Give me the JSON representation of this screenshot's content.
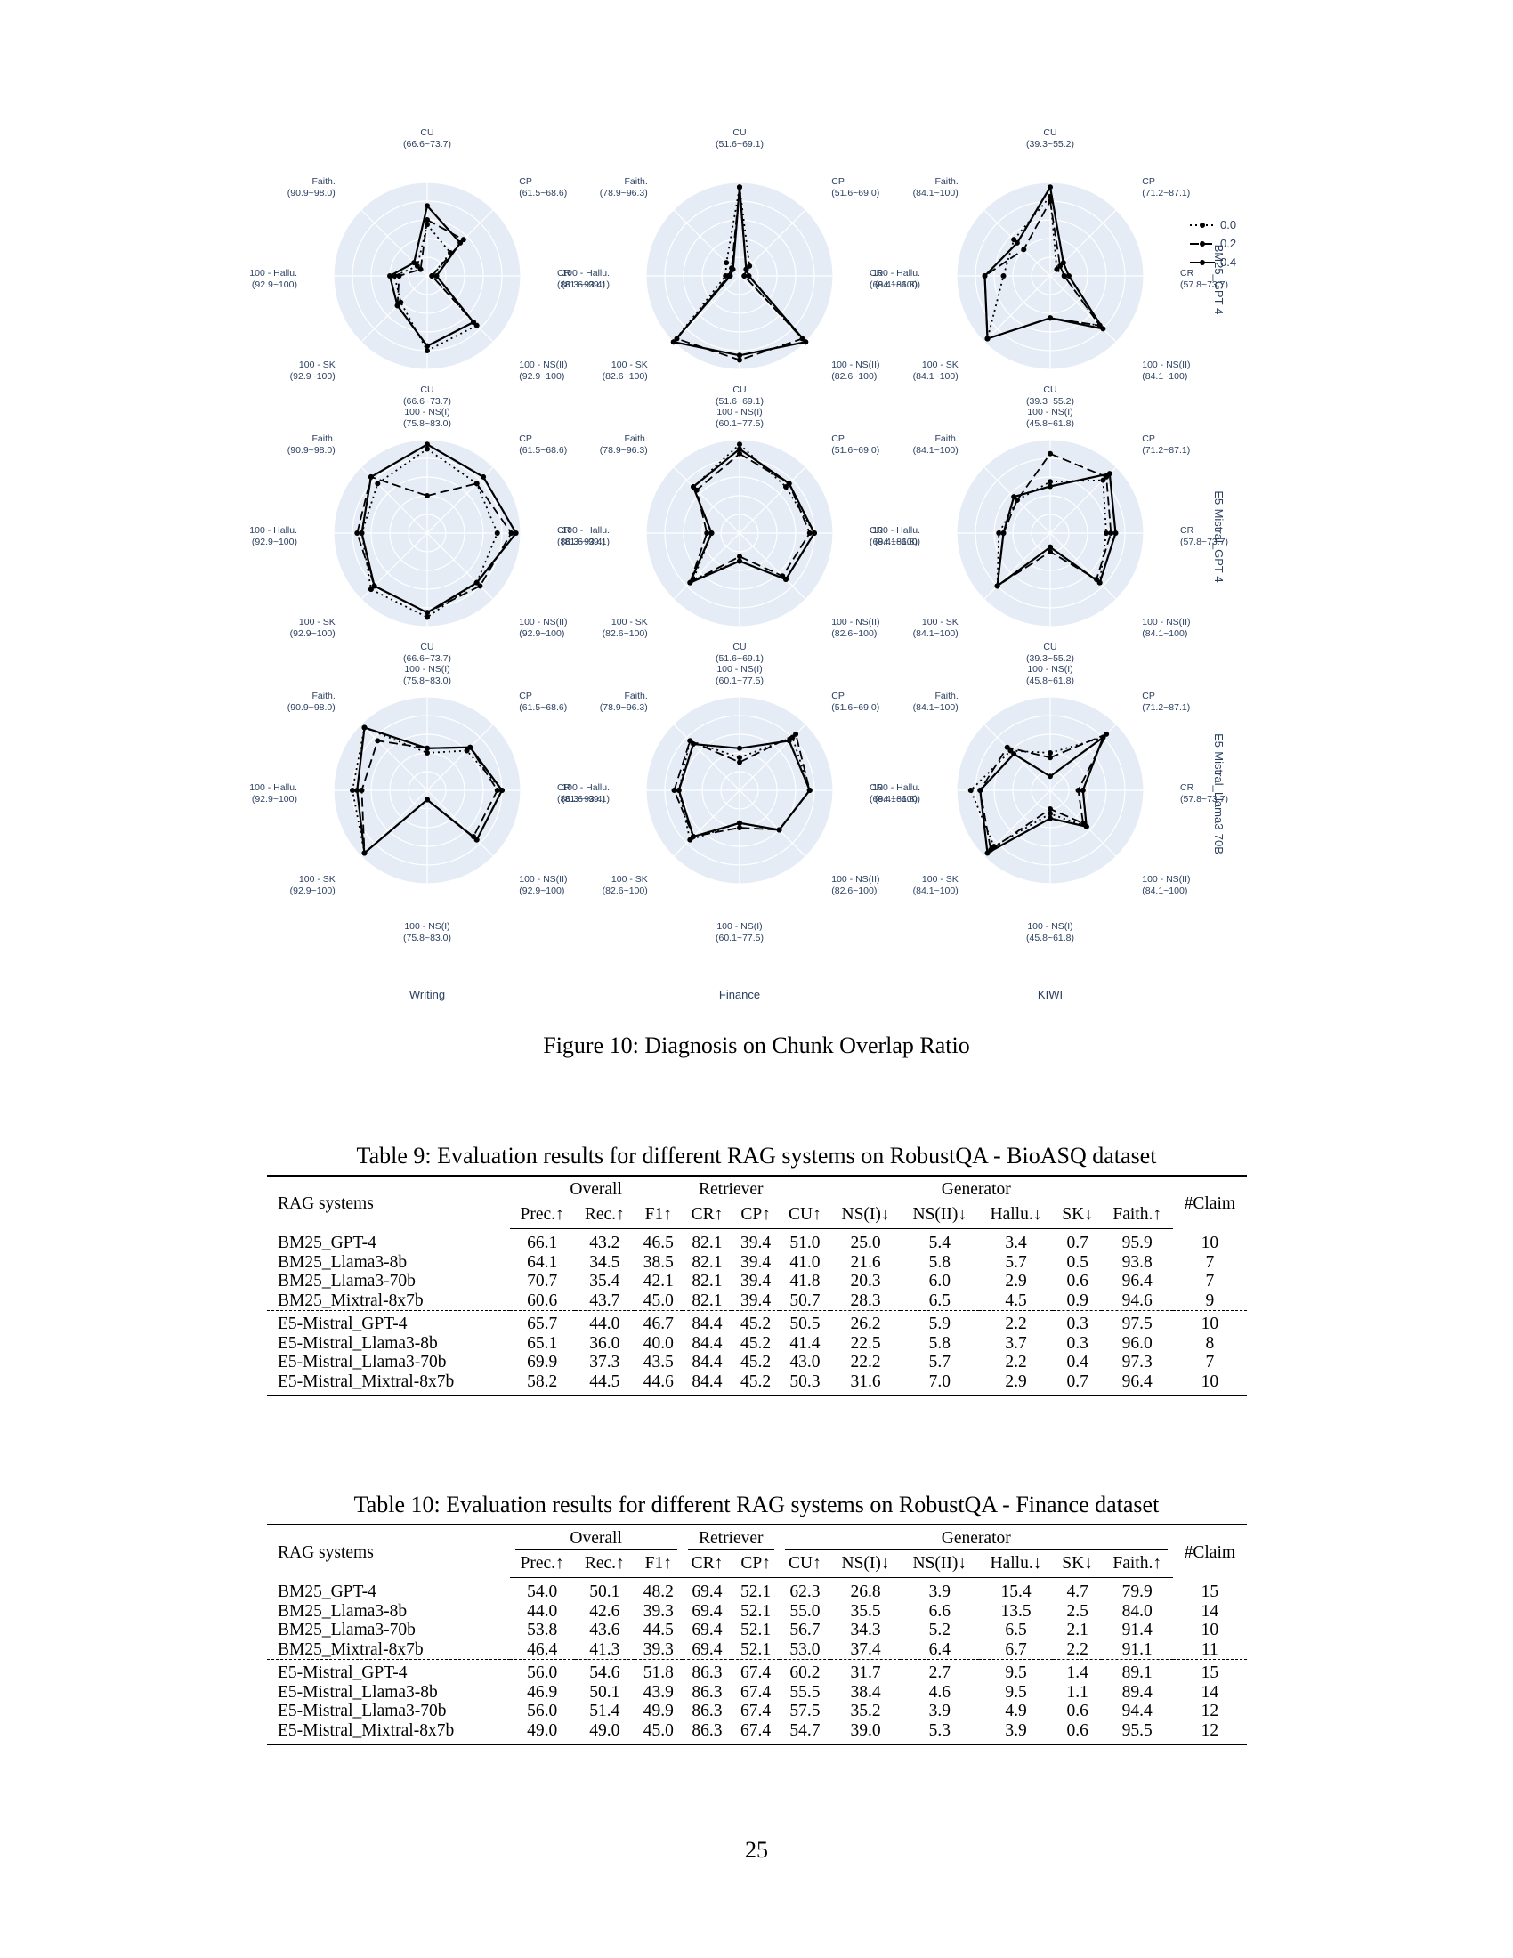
{
  "figure": {
    "caption": "Figure 10: Diagnosis on Chunk Overlap Ratio",
    "legend": [
      {
        "label": "0.0",
        "dash": "2,4"
      },
      {
        "label": "0.2",
        "dash": "10,5"
      },
      {
        "label": "0.4",
        "dash": ""
      }
    ],
    "columns": [
      "Writing",
      "Finance",
      "KIWI"
    ],
    "rows": [
      "BM25_GPT-4",
      "E5-Mistral_GPT-4",
      "E5-Mistral_Llama3-70B"
    ],
    "axis_ranges": {
      "Writing": {
        "CU": "(66.6~73.7)",
        "CP": "(61.5~68.6)",
        "CR": "(86.3~93.4)",
        "NSII": "(92.9~100)",
        "NSI": "(75.8~83.0)",
        "SK": "(92.9~100)",
        "Hallu": "(92.9~100)",
        "Faith": "(90.9~98.0)"
      },
      "Finance": {
        "CU": "(51.6~69.1)",
        "CP": "(51.6~69.0)",
        "CR": "(69.4~86.8)",
        "NSII": "(82.6~100)",
        "NSI": "(60.1~77.5)",
        "SK": "(82.6~100)",
        "Hallu": "(81.6~99.1)",
        "Faith": "(78.9~96.3)"
      },
      "KIWI": {
        "CU": "(39.3~55.2)",
        "CP": "(71.2~87.1)",
        "CR": "(57.8~73.7)",
        "NSII": "(84.1~100)",
        "NSI": "(45.8~61.8)",
        "SK": "(84.1~100)",
        "Hallu": "(84.1~100)",
        "Faith": "(84.1~100)"
      }
    },
    "chart_data": [
      {
        "type": "radar",
        "row": "BM25_GPT-4",
        "column": "Writing",
        "axes": [
          "CU",
          "CP",
          "CR",
          "100 - NS(II)",
          "100 - NS(I)",
          "100 - SK",
          "100 - Hallu.",
          "Faith."
        ],
        "scale": "normalized 0-1 within each axis range",
        "series": [
          {
            "name": "0.0",
            "values": [
              0.55,
              0.35,
              0.05,
              0.75,
              0.8,
              0.4,
              0.35,
              0.15
            ]
          },
          {
            "name": "0.2",
            "values": [
              0.6,
              0.55,
              0.05,
              0.7,
              0.75,
              0.45,
              0.3,
              0.1
            ]
          },
          {
            "name": "0.4",
            "values": [
              0.75,
              0.5,
              0.1,
              0.7,
              0.75,
              0.45,
              0.4,
              0.2
            ]
          }
        ]
      },
      {
        "type": "radar",
        "row": "BM25_GPT-4",
        "column": "Finance",
        "axes": [
          "CU",
          "CP",
          "CR",
          "100 - NS(II)",
          "100 - NS(I)",
          "100 - SK",
          "100 - Hallu.",
          "Faith."
        ],
        "scale": "normalized 0-1 within each axis range",
        "series": [
          {
            "name": "0.0",
            "values": [
              0.95,
              0.15,
              0.05,
              1.0,
              0.85,
              1.0,
              0.15,
              0.2
            ]
          },
          {
            "name": "0.2",
            "values": [
              0.95,
              0.1,
              0.05,
              0.95,
              0.9,
              0.95,
              0.12,
              0.12
            ]
          },
          {
            "name": "0.4",
            "values": [
              0.95,
              0.1,
              0.1,
              1.0,
              0.85,
              1.0,
              0.1,
              0.1
            ]
          }
        ]
      },
      {
        "type": "radar",
        "row": "BM25_GPT-4",
        "column": "KIWI",
        "axes": [
          "CU",
          "CP",
          "CR",
          "100 - NS(II)",
          "100 - NS(I)",
          "100 - SK",
          "100 - Hallu.",
          "Faith."
        ],
        "scale": "normalized 0-1 within each axis range",
        "series": [
          {
            "name": "0.0",
            "values": [
              0.85,
              0.1,
              0.15,
              0.75,
              0.45,
              0.95,
              0.5,
              0.55
            ]
          },
          {
            "name": "0.2",
            "values": [
              0.8,
              0.15,
              0.15,
              0.75,
              0.45,
              0.95,
              0.7,
              0.4
            ]
          },
          {
            "name": "0.4",
            "values": [
              0.95,
              0.2,
              0.2,
              0.8,
              0.45,
              0.95,
              0.7,
              0.5
            ]
          }
        ]
      },
      {
        "type": "radar",
        "row": "E5-Mistral_GPT-4",
        "column": "Writing",
        "axes": [
          "CU",
          "CP",
          "CR",
          "100 - NS(II)",
          "100 - NS(I)",
          "100 - SK",
          "100 - Hallu.",
          "Faith."
        ],
        "scale": "normalized 0-1 within each axis range",
        "series": [
          {
            "name": "0.0",
            "values": [
              0.9,
              0.75,
              0.75,
              0.75,
              0.9,
              0.85,
              0.7,
              0.75
            ]
          },
          {
            "name": "0.2",
            "values": [
              0.4,
              0.75,
              0.9,
              0.8,
              0.85,
              0.8,
              0.75,
              0.85
            ]
          },
          {
            "name": "0.4",
            "values": [
              0.95,
              0.85,
              0.95,
              0.75,
              0.85,
              0.8,
              0.7,
              0.85
            ]
          }
        ]
      },
      {
        "type": "radar",
        "row": "E5-Mistral_GPT-4",
        "column": "Finance",
        "axes": [
          "CU",
          "CP",
          "CR",
          "100 - NS(II)",
          "100 - NS(I)",
          "100 - SK",
          "100 - Hallu.",
          "Faith."
        ],
        "scale": "normalized 0-1 within each axis range",
        "series": [
          {
            "name": "0.0",
            "values": [
              0.95,
              0.7,
              0.8,
              0.7,
              0.3,
              0.7,
              0.3,
              0.7
            ]
          },
          {
            "name": "0.2",
            "values": [
              0.85,
              0.75,
              0.75,
              0.65,
              0.25,
              0.75,
              0.35,
              0.65
            ]
          },
          {
            "name": "0.4",
            "values": [
              0.9,
              0.75,
              0.8,
              0.7,
              0.3,
              0.75,
              0.3,
              0.7
            ]
          }
        ]
      },
      {
        "type": "radar",
        "row": "E5-Mistral_GPT-4",
        "column": "KIWI",
        "axes": [
          "CU",
          "CP",
          "CR",
          "100 - NS(II)",
          "100 - NS(I)",
          "100 - SK",
          "100 - Hallu.",
          "Faith."
        ],
        "scale": "normalized 0-1 within each axis range",
        "series": [
          {
            "name": "0.0",
            "values": [
              0.55,
              0.8,
              0.6,
              0.75,
              0.15,
              0.8,
              0.55,
              0.5
            ]
          },
          {
            "name": "0.2",
            "values": [
              0.85,
              0.85,
              0.65,
              0.7,
              0.2,
              0.8,
              0.5,
              0.5
            ]
          },
          {
            "name": "0.4",
            "values": [
              0.5,
              0.9,
              0.7,
              0.75,
              0.15,
              0.8,
              0.5,
              0.55
            ]
          }
        ]
      },
      {
        "type": "radar",
        "row": "E5-Mistral_Llama3-70B",
        "column": "Writing",
        "axes": [
          "CU",
          "CP",
          "CR",
          "100 - NS(II)",
          "100 - NS(I)",
          "100 - SK",
          "100 - Hallu.",
          "Faith."
        ],
        "scale": "normalized 0-1 within each axis range",
        "series": [
          {
            "name": "0.0",
            "values": [
              0.4,
              0.6,
              0.8,
              0.75,
              0.1,
              0.95,
              0.8,
              0.95
            ]
          },
          {
            "name": "0.2",
            "values": [
              0.45,
              0.65,
              0.75,
              0.7,
              0.1,
              0.95,
              0.7,
              0.75
            ]
          },
          {
            "name": "0.4",
            "values": [
              0.45,
              0.65,
              0.8,
              0.75,
              0.1,
              0.95,
              0.75,
              0.95
            ]
          }
        ]
      },
      {
        "type": "radar",
        "row": "E5-Mistral_Llama3-70B",
        "column": "Finance",
        "axes": [
          "CU",
          "CP",
          "CR",
          "100 - NS(II)",
          "100 - NS(I)",
          "100 - SK",
          "100 - Hallu.",
          "Faith."
        ],
        "scale": "normalized 0-1 within each axis range",
        "series": [
          {
            "name": "0.0",
            "values": [
              0.35,
              0.8,
              0.75,
              0.6,
              0.35,
              0.75,
              0.65,
              0.75
            ]
          },
          {
            "name": "0.2",
            "values": [
              0.3,
              0.85,
              0.75,
              0.6,
              0.4,
              0.7,
              0.7,
              0.75
            ]
          },
          {
            "name": "0.4",
            "values": [
              0.45,
              0.75,
              0.75,
              0.6,
              0.35,
              0.7,
              0.65,
              0.7
            ]
          }
        ]
      },
      {
        "type": "radar",
        "row": "E5-Mistral_Llama3-70B",
        "column": "KIWI",
        "axes": [
          "CU",
          "CP",
          "CR",
          "100 - NS(II)",
          "100 - NS(I)",
          "100 - SK",
          "100 - Hallu.",
          "Faith."
        ],
        "scale": "normalized 0-1 within each axis range",
        "series": [
          {
            "name": "0.0",
            "values": [
              0.4,
              0.8,
              0.35,
              0.55,
              0.25,
              0.85,
              0.85,
              0.6
            ]
          },
          {
            "name": "0.2",
            "values": [
              0.35,
              0.85,
              0.3,
              0.5,
              0.2,
              0.9,
              0.75,
              0.65
            ]
          },
          {
            "name": "0.4",
            "values": [
              0.15,
              0.8,
              0.35,
              0.55,
              0.3,
              0.95,
              0.75,
              0.55
            ]
          }
        ]
      }
    ]
  },
  "table_header": {
    "rag_systems": "RAG systems",
    "overall": "Overall",
    "retriever": "Retriever",
    "generator": "Generator",
    "claim": "#Claim",
    "cols": [
      "Prec.↑",
      "Rec.↑",
      "F1↑",
      "CR↑",
      "CP↑",
      "CU↑",
      "NS(I)↓",
      "NS(II)↓",
      "Hallu.↓",
      "SK↓",
      "Faith.↑"
    ]
  },
  "table9": {
    "caption": "Table 9: Evaluation results for different RAG systems on RobustQA - BioASQ dataset",
    "rows": [
      [
        "BM25_GPT-4",
        "66.1",
        "43.2",
        "46.5",
        "82.1",
        "39.4",
        "51.0",
        "25.0",
        "5.4",
        "3.4",
        "0.7",
        "95.9",
        "10"
      ],
      [
        "BM25_Llama3-8b",
        "64.1",
        "34.5",
        "38.5",
        "82.1",
        "39.4",
        "41.0",
        "21.6",
        "5.8",
        "5.7",
        "0.5",
        "93.8",
        "7"
      ],
      [
        "BM25_Llama3-70b",
        "70.7",
        "35.4",
        "42.1",
        "82.1",
        "39.4",
        "41.8",
        "20.3",
        "6.0",
        "2.9",
        "0.6",
        "96.4",
        "7"
      ],
      [
        "BM25_Mixtral-8x7b",
        "60.6",
        "43.7",
        "45.0",
        "82.1",
        "39.4",
        "50.7",
        "28.3",
        "6.5",
        "4.5",
        "0.9",
        "94.6",
        "9"
      ],
      [
        "E5-Mistral_GPT-4",
        "65.7",
        "44.0",
        "46.7",
        "84.4",
        "45.2",
        "50.5",
        "26.2",
        "5.9",
        "2.2",
        "0.3",
        "97.5",
        "10"
      ],
      [
        "E5-Mistral_Llama3-8b",
        "65.1",
        "36.0",
        "40.0",
        "84.4",
        "45.2",
        "41.4",
        "22.5",
        "5.8",
        "3.7",
        "0.3",
        "96.0",
        "8"
      ],
      [
        "E5-Mistral_Llama3-70b",
        "69.9",
        "37.3",
        "43.5",
        "84.4",
        "45.2",
        "43.0",
        "22.2",
        "5.7",
        "2.2",
        "0.4",
        "97.3",
        "7"
      ],
      [
        "E5-Mistral_Mixtral-8x7b",
        "58.2",
        "44.5",
        "44.6",
        "84.4",
        "45.2",
        "50.3",
        "31.6",
        "7.0",
        "2.9",
        "0.7",
        "96.4",
        "10"
      ]
    ]
  },
  "table10": {
    "caption": "Table 10: Evaluation results for different RAG systems on RobustQA - Finance dataset",
    "rows": [
      [
        "BM25_GPT-4",
        "54.0",
        "50.1",
        "48.2",
        "69.4",
        "52.1",
        "62.3",
        "26.8",
        "3.9",
        "15.4",
        "4.7",
        "79.9",
        "15"
      ],
      [
        "BM25_Llama3-8b",
        "44.0",
        "42.6",
        "39.3",
        "69.4",
        "52.1",
        "55.0",
        "35.5",
        "6.6",
        "13.5",
        "2.5",
        "84.0",
        "14"
      ],
      [
        "BM25_Llama3-70b",
        "53.8",
        "43.6",
        "44.5",
        "69.4",
        "52.1",
        "56.7",
        "34.3",
        "5.2",
        "6.5",
        "2.1",
        "91.4",
        "10"
      ],
      [
        "BM25_Mixtral-8x7b",
        "46.4",
        "41.3",
        "39.3",
        "69.4",
        "52.1",
        "53.0",
        "37.4",
        "6.4",
        "6.7",
        "2.2",
        "91.1",
        "11"
      ],
      [
        "E5-Mistral_GPT-4",
        "56.0",
        "54.6",
        "51.8",
        "86.3",
        "67.4",
        "60.2",
        "31.7",
        "2.7",
        "9.5",
        "1.4",
        "89.1",
        "15"
      ],
      [
        "E5-Mistral_Llama3-8b",
        "46.9",
        "50.1",
        "43.9",
        "86.3",
        "67.4",
        "55.5",
        "38.4",
        "4.6",
        "9.5",
        "1.1",
        "89.4",
        "14"
      ],
      [
        "E5-Mistral_Llama3-70b",
        "56.0",
        "51.4",
        "49.9",
        "86.3",
        "67.4",
        "57.5",
        "35.2",
        "3.9",
        "4.9",
        "0.6",
        "94.4",
        "12"
      ],
      [
        "E5-Mistral_Mixtral-8x7b",
        "49.0",
        "49.0",
        "45.0",
        "86.3",
        "67.4",
        "54.7",
        "39.0",
        "5.3",
        "3.9",
        "0.6",
        "95.5",
        "12"
      ]
    ]
  },
  "page_number": "25"
}
